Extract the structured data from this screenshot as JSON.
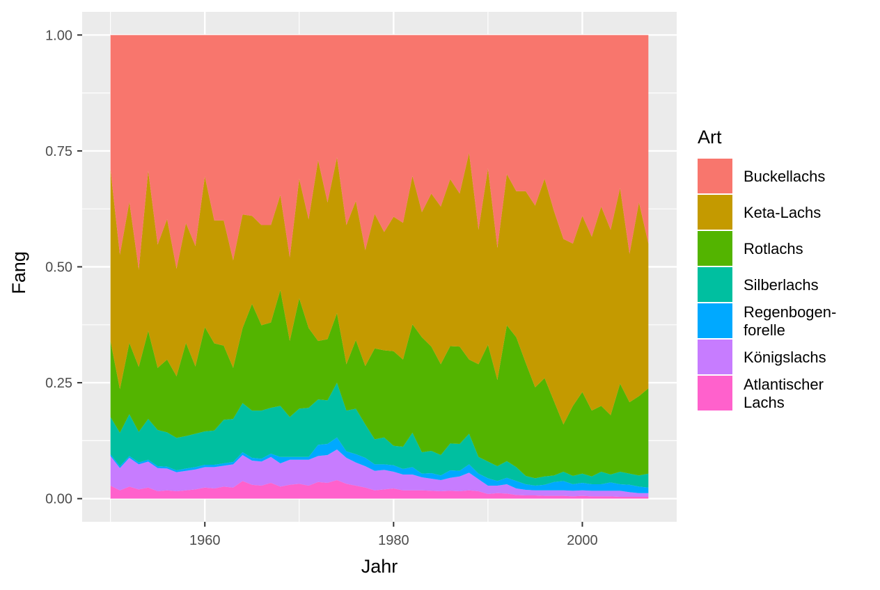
{
  "chart_data": {
    "type": "area",
    "stacked": "fill",
    "xlabel": "Jahr",
    "ylabel": "Fang",
    "xlim": [
      1947,
      2010
    ],
    "ylim": [
      -0.05,
      1.05
    ],
    "x_ticks": [
      1960,
      1980,
      2000
    ],
    "x_tick_labels": [
      "1960",
      "1980",
      "2000"
    ],
    "y_ticks": [
      0,
      0.25,
      0.5,
      0.75,
      1.0
    ],
    "y_tick_labels": [
      "0.00",
      "0.25",
      "0.50",
      "0.75",
      "1.00"
    ],
    "grid": true,
    "legend": {
      "title": "Art",
      "position": "right"
    },
    "x": [
      1950,
      1951,
      1952,
      1953,
      1954,
      1955,
      1956,
      1957,
      1958,
      1959,
      1960,
      1961,
      1962,
      1963,
      1964,
      1965,
      1966,
      1967,
      1968,
      1969,
      1970,
      1971,
      1972,
      1973,
      1974,
      1975,
      1976,
      1977,
      1978,
      1979,
      1980,
      1981,
      1982,
      1983,
      1984,
      1985,
      1986,
      1987,
      1988,
      1989,
      1990,
      1991,
      1992,
      1993,
      1994,
      1995,
      1996,
      1997,
      1998,
      1999,
      2000,
      2001,
      2002,
      2003,
      2004,
      2005,
      2006,
      2007
    ],
    "series": [
      {
        "name": "Atlantischer Lachs",
        "color": "#FF61CC",
        "values": [
          0.028,
          0.018,
          0.026,
          0.02,
          0.024,
          0.016,
          0.018,
          0.016,
          0.018,
          0.02,
          0.024,
          0.022,
          0.026,
          0.024,
          0.038,
          0.03,
          0.028,
          0.034,
          0.026,
          0.03,
          0.032,
          0.028,
          0.036,
          0.034,
          0.04,
          0.032,
          0.028,
          0.024,
          0.018,
          0.02,
          0.022,
          0.018,
          0.018,
          0.018,
          0.017,
          0.016,
          0.017,
          0.016,
          0.018,
          0.016,
          0.01,
          0.012,
          0.011,
          0.008,
          0.007,
          0.007,
          0.006,
          0.006,
          0.006,
          0.005,
          0.006,
          0.005,
          0.005,
          0.005,
          0.004,
          0.004,
          0.004,
          0.004
        ]
      },
      {
        "name": "Königslachs",
        "color": "#C77CFF",
        "values": [
          0.064,
          0.048,
          0.062,
          0.054,
          0.056,
          0.05,
          0.047,
          0.041,
          0.042,
          0.043,
          0.044,
          0.046,
          0.045,
          0.05,
          0.056,
          0.052,
          0.052,
          0.056,
          0.05,
          0.054,
          0.052,
          0.056,
          0.056,
          0.06,
          0.066,
          0.056,
          0.05,
          0.046,
          0.042,
          0.042,
          0.036,
          0.034,
          0.034,
          0.028,
          0.026,
          0.024,
          0.028,
          0.032,
          0.038,
          0.026,
          0.018,
          0.016,
          0.02,
          0.014,
          0.012,
          0.011,
          0.012,
          0.012,
          0.012,
          0.012,
          0.012,
          0.012,
          0.012,
          0.012,
          0.013,
          0.01,
          0.008,
          0.008
        ]
      },
      {
        "name": "Regenbogen-forelle",
        "color": "#00A9FF",
        "values": [
          0.004,
          0.004,
          0.004,
          0.004,
          0.004,
          0.004,
          0.004,
          0.004,
          0.005,
          0.005,
          0.005,
          0.005,
          0.005,
          0.005,
          0.006,
          0.006,
          0.006,
          0.007,
          0.014,
          0.006,
          0.006,
          0.006,
          0.024,
          0.024,
          0.026,
          0.014,
          0.018,
          0.018,
          0.014,
          0.012,
          0.014,
          0.012,
          0.016,
          0.008,
          0.012,
          0.01,
          0.016,
          0.012,
          0.018,
          0.012,
          0.016,
          0.01,
          0.014,
          0.016,
          0.012,
          0.01,
          0.012,
          0.018,
          0.02,
          0.014,
          0.016,
          0.014,
          0.014,
          0.018,
          0.014,
          0.016,
          0.014,
          0.012
        ]
      },
      {
        "name": "Silberlachs",
        "color": "#00BFA0",
        "values": [
          0.08,
          0.072,
          0.09,
          0.066,
          0.088,
          0.078,
          0.074,
          0.07,
          0.07,
          0.072,
          0.072,
          0.074,
          0.094,
          0.093,
          0.106,
          0.102,
          0.104,
          0.099,
          0.11,
          0.086,
          0.104,
          0.106,
          0.098,
          0.094,
          0.118,
          0.088,
          0.098,
          0.072,
          0.054,
          0.058,
          0.042,
          0.048,
          0.074,
          0.046,
          0.048,
          0.044,
          0.058,
          0.058,
          0.066,
          0.036,
          0.036,
          0.032,
          0.036,
          0.03,
          0.018,
          0.016,
          0.018,
          0.014,
          0.02,
          0.018,
          0.02,
          0.017,
          0.027,
          0.017,
          0.027,
          0.024,
          0.024,
          0.03
        ]
      },
      {
        "name": "Rotlachs",
        "color": "#53B400",
        "values": [
          0.164,
          0.094,
          0.154,
          0.14,
          0.19,
          0.134,
          0.157,
          0.133,
          0.201,
          0.145,
          0.225,
          0.188,
          0.16,
          0.11,
          0.162,
          0.23,
          0.184,
          0.184,
          0.25,
          0.164,
          0.238,
          0.172,
          0.126,
          0.132,
          0.15,
          0.1,
          0.148,
          0.126,
          0.196,
          0.188,
          0.204,
          0.188,
          0.234,
          0.248,
          0.225,
          0.196,
          0.21,
          0.21,
          0.16,
          0.2,
          0.252,
          0.186,
          0.293,
          0.28,
          0.244,
          0.196,
          0.212,
          0.16,
          0.102,
          0.151,
          0.176,
          0.142,
          0.142,
          0.128,
          0.19,
          0.154,
          0.171,
          0.184
        ]
      },
      {
        "name": "Keta-Lachs",
        "color": "#C49A00",
        "values": [
          0.37,
          0.29,
          0.304,
          0.21,
          0.345,
          0.266,
          0.303,
          0.232,
          0.258,
          0.26,
          0.325,
          0.265,
          0.27,
          0.232,
          0.245,
          0.19,
          0.216,
          0.21,
          0.205,
          0.18,
          0.258,
          0.234,
          0.39,
          0.295,
          0.336,
          0.3,
          0.3,
          0.25,
          0.29,
          0.255,
          0.29,
          0.295,
          0.32,
          0.27,
          0.33,
          0.34,
          0.36,
          0.33,
          0.446,
          0.29,
          0.38,
          0.285,
          0.326,
          0.315,
          0.37,
          0.392,
          0.43,
          0.41,
          0.4,
          0.35,
          0.38,
          0.375,
          0.43,
          0.4,
          0.422,
          0.32,
          0.418,
          0.312
        ]
      },
      {
        "name": "Buckellachs",
        "color": "#F8766D",
        "values": [
          0.29,
          0.474,
          0.36,
          0.506,
          0.293,
          0.452,
          0.397,
          0.504,
          0.406,
          0.455,
          0.305,
          0.4,
          0.4,
          0.486,
          0.387,
          0.39,
          0.41,
          0.41,
          0.345,
          0.48,
          0.31,
          0.398,
          0.27,
          0.361,
          0.264,
          0.41,
          0.358,
          0.464,
          0.386,
          0.425,
          0.392,
          0.405,
          0.304,
          0.382,
          0.342,
          0.37,
          0.311,
          0.342,
          0.254,
          0.42,
          0.288,
          0.459,
          0.3,
          0.337,
          0.337,
          0.368,
          0.31,
          0.38,
          0.44,
          0.45,
          0.39,
          0.435,
          0.37,
          0.42,
          0.33,
          0.472,
          0.361,
          0.45
        ]
      }
    ]
  }
}
